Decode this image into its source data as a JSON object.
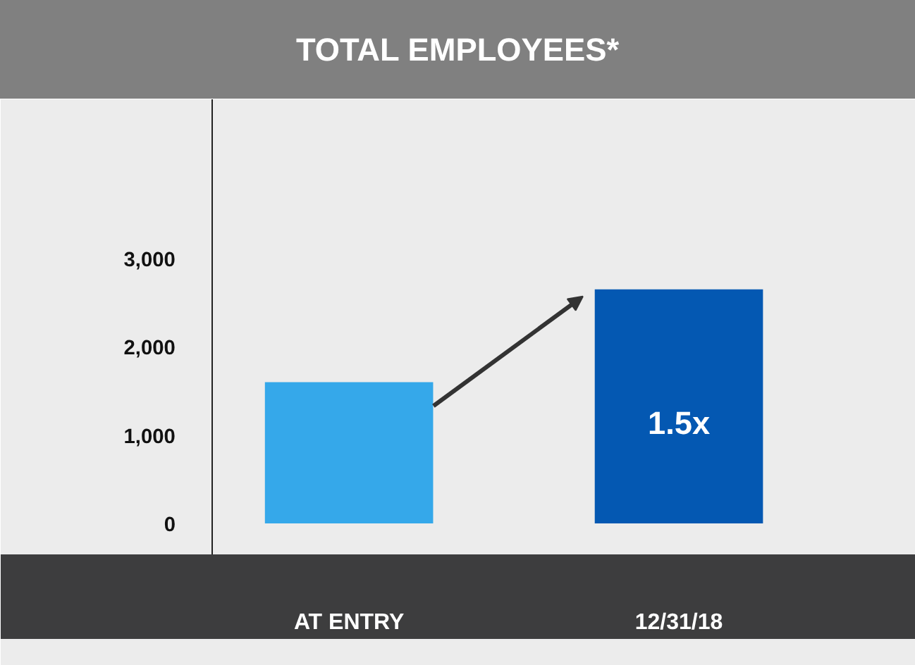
{
  "chart_data": {
    "type": "bar",
    "title": "TOTAL EMPLOYEES*",
    "categories": [
      "AT ENTRY",
      "12/31/18"
    ],
    "values": [
      1600,
      2650
    ],
    "colors": [
      "#35a8ea",
      "#0458b2"
    ],
    "ylim": [
      -350,
      4800
    ],
    "yticks": [
      0,
      {
        "value": 1000,
        "label": "1,000"
      },
      {
        "value": 2000,
        "label": "2,000"
      },
      {
        "value": 3000,
        "label": "3,000"
      }
    ],
    "grid": false,
    "annotations": [
      "1.5x"
    ]
  }
}
